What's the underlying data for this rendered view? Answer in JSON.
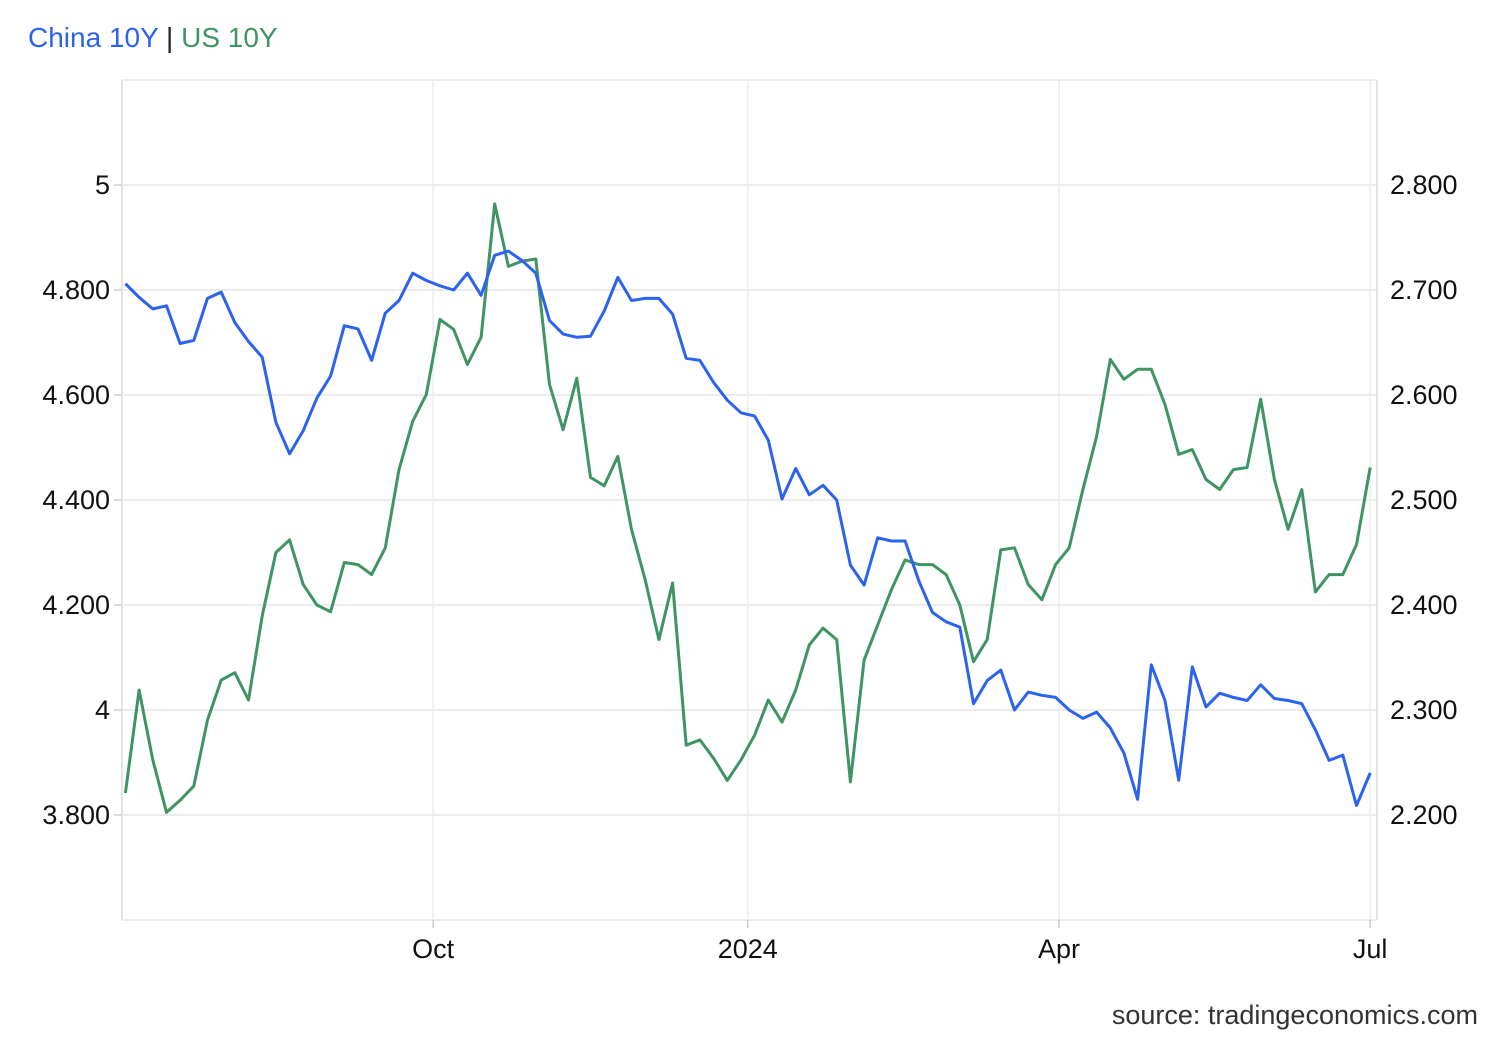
{
  "chart_data": {
    "type": "line",
    "title": "",
    "legend": {
      "placement": "top-left",
      "separator": "|"
    },
    "source": "source: tradingeconomics.com",
    "grid": true,
    "x": [
      "2023-07-03",
      "2023-07-07",
      "2023-07-11",
      "2023-07-15",
      "2023-07-19",
      "2023-07-23",
      "2023-07-27",
      "2023-07-31",
      "2023-08-04",
      "2023-08-08",
      "2023-08-12",
      "2023-08-16",
      "2023-08-20",
      "2023-08-24",
      "2023-08-28",
      "2023-09-01",
      "2023-09-05",
      "2023-09-09",
      "2023-09-13",
      "2023-09-17",
      "2023-09-21",
      "2023-09-25",
      "2023-09-29",
      "2023-10-03",
      "2023-10-07",
      "2023-10-11",
      "2023-10-15",
      "2023-10-19",
      "2023-10-23",
      "2023-10-27",
      "2023-10-31",
      "2023-11-04",
      "2023-11-08",
      "2023-11-12",
      "2023-11-16",
      "2023-11-20",
      "2023-11-24",
      "2023-11-28",
      "2023-12-02",
      "2023-12-06",
      "2023-12-10",
      "2023-12-14",
      "2023-12-18",
      "2023-12-22",
      "2023-12-26",
      "2023-12-30",
      "2024-01-03",
      "2024-01-07",
      "2024-01-11",
      "2024-01-15",
      "2024-01-19",
      "2024-01-23",
      "2024-01-27",
      "2024-01-31",
      "2024-02-04",
      "2024-02-08",
      "2024-02-12",
      "2024-02-16",
      "2024-02-20",
      "2024-02-24",
      "2024-02-28",
      "2024-03-03",
      "2024-03-07",
      "2024-03-11",
      "2024-03-15",
      "2024-03-19",
      "2024-03-23",
      "2024-03-27",
      "2024-03-31",
      "2024-04-04",
      "2024-04-08",
      "2024-04-12",
      "2024-04-16",
      "2024-04-20",
      "2024-04-24",
      "2024-04-28",
      "2024-05-02",
      "2024-05-06",
      "2024-05-10",
      "2024-05-14",
      "2024-05-18",
      "2024-05-22",
      "2024-05-26",
      "2024-05-30",
      "2024-06-03",
      "2024-06-07",
      "2024-06-11",
      "2024-06-15",
      "2024-06-19",
      "2024-06-23",
      "2024-06-27",
      "2024-07-01"
    ],
    "x_range": [
      "2023-07-02",
      "2024-07-03"
    ],
    "x_ticks": [
      {
        "date": "2023-10-01",
        "label": "Oct"
      },
      {
        "date": "2024-01-01",
        "label": "2024"
      },
      {
        "date": "2024-04-01",
        "label": "Apr"
      },
      {
        "date": "2024-07-01",
        "label": "Jul"
      }
    ],
    "y_left": {
      "range": [
        3.6,
        5.2
      ],
      "ticks": [
        {
          "v": 3.8,
          "label": "3.800"
        },
        {
          "v": 4.0,
          "label": "4"
        },
        {
          "v": 4.2,
          "label": "4.200"
        },
        {
          "v": 4.4,
          "label": "4.400"
        },
        {
          "v": 4.6,
          "label": "4.600"
        },
        {
          "v": 4.8,
          "label": "4.800"
        },
        {
          "v": 5.0,
          "label": "5"
        }
      ]
    },
    "y_right": {
      "range": [
        2.1,
        2.9
      ],
      "ticks": [
        {
          "v": 2.2,
          "label": "2.200"
        },
        {
          "v": 2.3,
          "label": "2.300"
        },
        {
          "v": 2.4,
          "label": "2.400"
        },
        {
          "v": 2.5,
          "label": "2.500"
        },
        {
          "v": 2.6,
          "label": "2.600"
        },
        {
          "v": 2.7,
          "label": "2.700"
        },
        {
          "v": 2.8,
          "label": "2.800"
        }
      ]
    },
    "series": [
      {
        "name": "China 10Y",
        "axis": "right",
        "color": "#2b63f0",
        "values": [
          2.706,
          2.693,
          2.682,
          2.685,
          2.649,
          2.652,
          2.692,
          2.698,
          2.669,
          2.651,
          2.636,
          2.574,
          2.544,
          2.566,
          2.597,
          2.618,
          2.666,
          2.663,
          2.633,
          2.678,
          2.69,
          2.716,
          2.709,
          2.704,
          2.7,
          2.716,
          2.695,
          2.733,
          2.737,
          2.728,
          2.716,
          2.671,
          2.658,
          2.655,
          2.656,
          2.68,
          2.712,
          2.69,
          2.692,
          2.692,
          2.677,
          2.635,
          2.633,
          2.612,
          2.595,
          2.583,
          2.58,
          2.557,
          2.501,
          2.53,
          2.505,
          2.514,
          2.5,
          2.438,
          2.419,
          2.464,
          2.461,
          2.461,
          2.423,
          2.393,
          2.384,
          2.379,
          2.306,
          2.328,
          2.338,
          2.3,
          2.317,
          2.314,
          2.312,
          2.3,
          2.292,
          2.298,
          2.283,
          2.259,
          2.215,
          2.343,
          2.309,
          2.233,
          2.341,
          2.303,
          2.316,
          2.312,
          2.309,
          2.324,
          2.311,
          2.309,
          2.306,
          2.281,
          2.252,
          2.257,
          2.209,
          2.24
        ]
      },
      {
        "name": "US 10Y",
        "axis": "left",
        "color": "#3f9463",
        "values": [
          3.842,
          4.038,
          3.905,
          3.805,
          3.828,
          3.855,
          3.981,
          4.057,
          4.071,
          4.019,
          4.179,
          4.3,
          4.324,
          4.239,
          4.2,
          4.187,
          4.281,
          4.277,
          4.258,
          4.309,
          4.458,
          4.55,
          4.601,
          4.744,
          4.725,
          4.658,
          4.71,
          4.964,
          4.845,
          4.855,
          4.859,
          4.62,
          4.534,
          4.632,
          4.443,
          4.427,
          4.483,
          4.344,
          4.248,
          4.134,
          4.242,
          3.933,
          3.943,
          3.908,
          3.866,
          3.905,
          3.952,
          4.019,
          3.977,
          4.038,
          4.124,
          4.156,
          4.134,
          3.863,
          4.095,
          4.162,
          4.229,
          4.286,
          4.277,
          4.277,
          4.258,
          4.2,
          4.092,
          4.134,
          4.305,
          4.309,
          4.239,
          4.21,
          4.277,
          4.309,
          4.42,
          4.521,
          4.668,
          4.63,
          4.649,
          4.649,
          4.582,
          4.487,
          4.496,
          4.439,
          4.42,
          4.458,
          4.462,
          4.592,
          4.439,
          4.344,
          4.42,
          4.225,
          4.258,
          4.258,
          4.315,
          4.462
        ]
      }
    ]
  }
}
